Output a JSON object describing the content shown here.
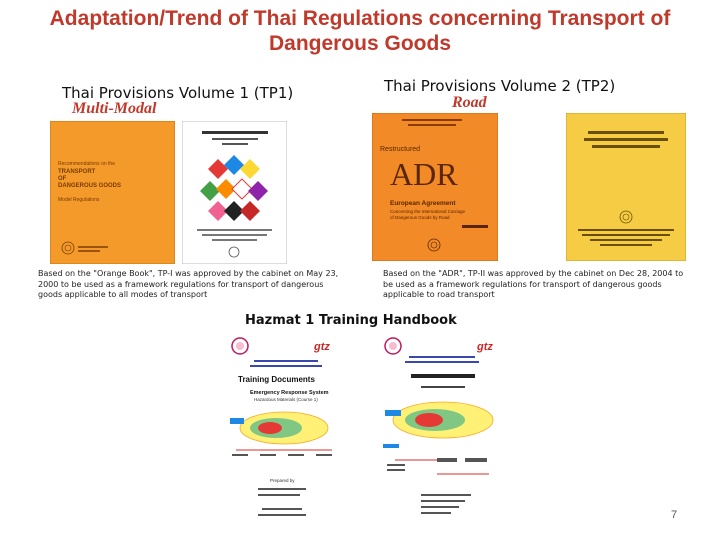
{
  "slide": {
    "title": "Adaptation/Trend of Thai Regulations concerning Transport of Dangerous Goods",
    "page_number": "7"
  },
  "left_column": {
    "heading": "Thai Provisions Volume 1 (TP1)",
    "subheading": "Multi-Modal",
    "caption": "Based on the \"Orange Book\", TP-I was approved by the cabinet on May 23, 2000 to be used as a framework regulations for transport of dangerous goods applicable to all modes of transport",
    "book1": {
      "line1": "Recommendations on the",
      "line2": "TRANSPORT",
      "line3": "OF",
      "line4": "DANGEROUS GOODS",
      "line5": "Model Regulations",
      "color": "#f39a2b"
    },
    "book2": {
      "color": "#ffffff"
    }
  },
  "right_column": {
    "heading": "Thai Provisions Volume 2 (TP2)",
    "subheading": "Road",
    "caption": "Based on the \"ADR\", TP-II was approved by the cabinet on Dec 28, 2004 to be used as a framework regulations for transport of dangerous goods applicable to road transport",
    "book1": {
      "top": "Restructured",
      "big": "ADR",
      "sub1": "European Agreement",
      "sub2": "Concerning the International Carriage",
      "sub3": "of Dangerous Goods by Road",
      "color": "#f28a28"
    },
    "book2": {
      "color": "#f5cc43"
    }
  },
  "handbook": {
    "heading": "Hazmat 1 Training Handbook",
    "doc1": {
      "logo": "gtz",
      "title": "Training Documents",
      "sub1": "Emergency Response System",
      "sub2": "Hazardous Materials (Course 1)",
      "label": "Prepared by"
    },
    "doc2": {
      "logo": "gtz"
    }
  }
}
